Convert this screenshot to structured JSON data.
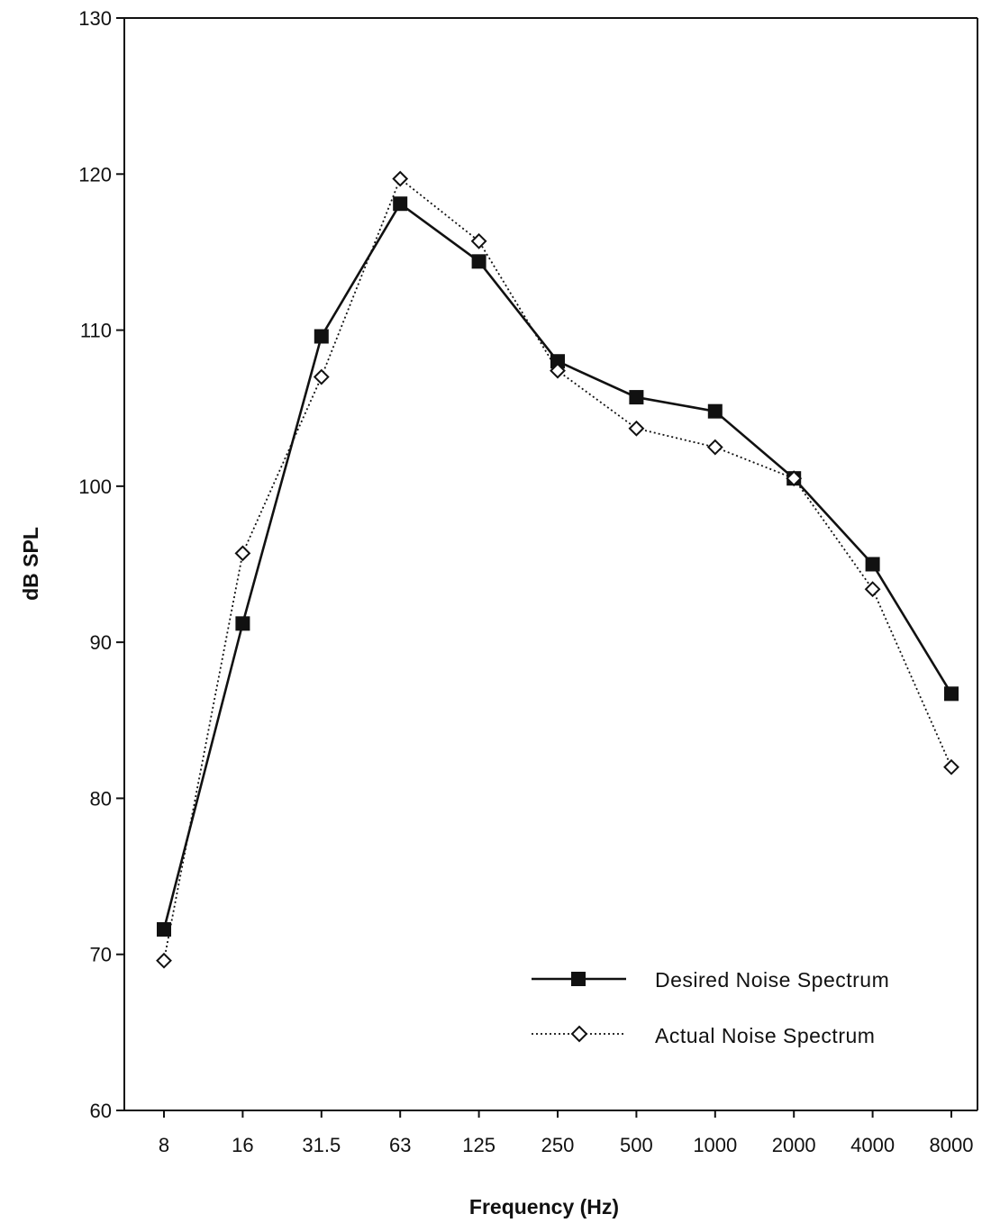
{
  "chart_data": {
    "type": "line",
    "xlabel": "Frequency (Hz)",
    "ylabel": "dB SPL",
    "categories": [
      "8",
      "16",
      "31.5",
      "63",
      "125",
      "250",
      "500",
      "1000",
      "2000",
      "4000",
      "8000"
    ],
    "ylim": [
      60,
      130
    ],
    "yticks": [
      60,
      70,
      80,
      90,
      100,
      110,
      120,
      130
    ],
    "grid": false,
    "legend_position": "bottom-right",
    "series": [
      {
        "name": "Desired Noise Spectrum",
        "marker": "filled-square",
        "line_style": "solid",
        "color": "#111111",
        "values": [
          71.6,
          91.2,
          109.6,
          118.1,
          114.4,
          108.0,
          105.7,
          104.8,
          100.5,
          95.0,
          86.7
        ]
      },
      {
        "name": "Actual Noise Spectrum",
        "marker": "open-diamond",
        "line_style": "dotted",
        "color": "#111111",
        "values": [
          69.6,
          95.7,
          107.0,
          119.7,
          115.7,
          107.4,
          103.7,
          102.5,
          100.5,
          93.4,
          82.0
        ]
      }
    ]
  }
}
